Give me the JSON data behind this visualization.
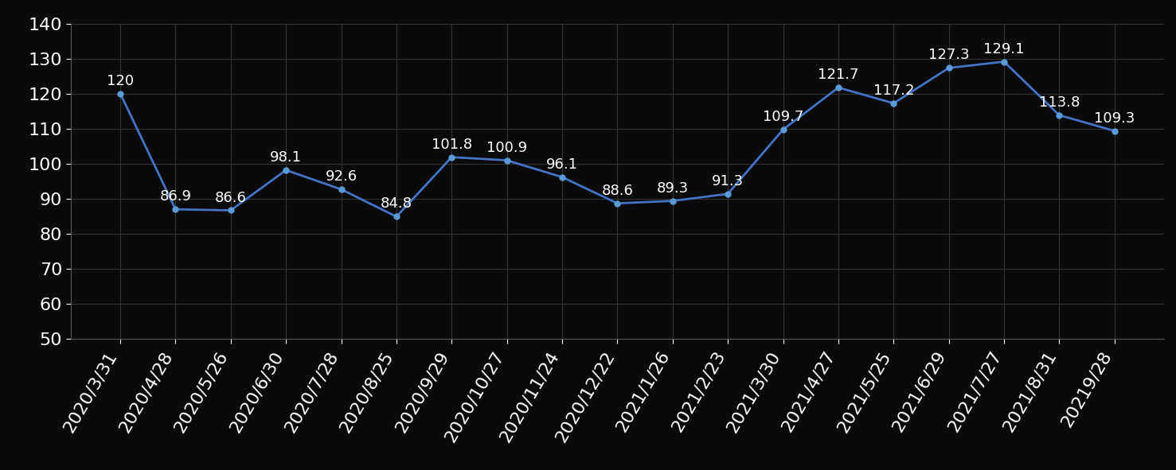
{
  "x_labels": [
    "2020/3/31",
    "2020/4/28",
    "2020/5/26",
    "2020/6/30",
    "2020/7/28",
    "2020/8/25",
    "2020/9/29",
    "2020/10/27",
    "2020/11/24",
    "2020/12/22",
    "2021/1/26",
    "2021/2/23",
    "2021/3/30",
    "2021/4/27",
    "2021/5/25",
    "2021/6/29",
    "2021/7/27",
    "2021/8/31",
    "20219/28"
  ],
  "values": [
    120,
    86.9,
    86.6,
    98.1,
    92.6,
    84.8,
    101.8,
    100.9,
    96.1,
    88.6,
    89.3,
    91.3,
    109.7,
    121.7,
    117.2,
    127.3,
    129.1,
    113.8,
    109.3
  ],
  "line_color": "#4472C4",
  "marker_color": "#5B9BD5",
  "background_color": "#0a0a0a",
  "text_color": "#FFFFFF",
  "grid_color": "#333333",
  "ylim": [
    50,
    140
  ],
  "yticks": [
    50,
    60,
    70,
    80,
    90,
    100,
    110,
    120,
    130,
    140
  ],
  "tick_fontsize": 16,
  "annotation_fontsize": 13
}
